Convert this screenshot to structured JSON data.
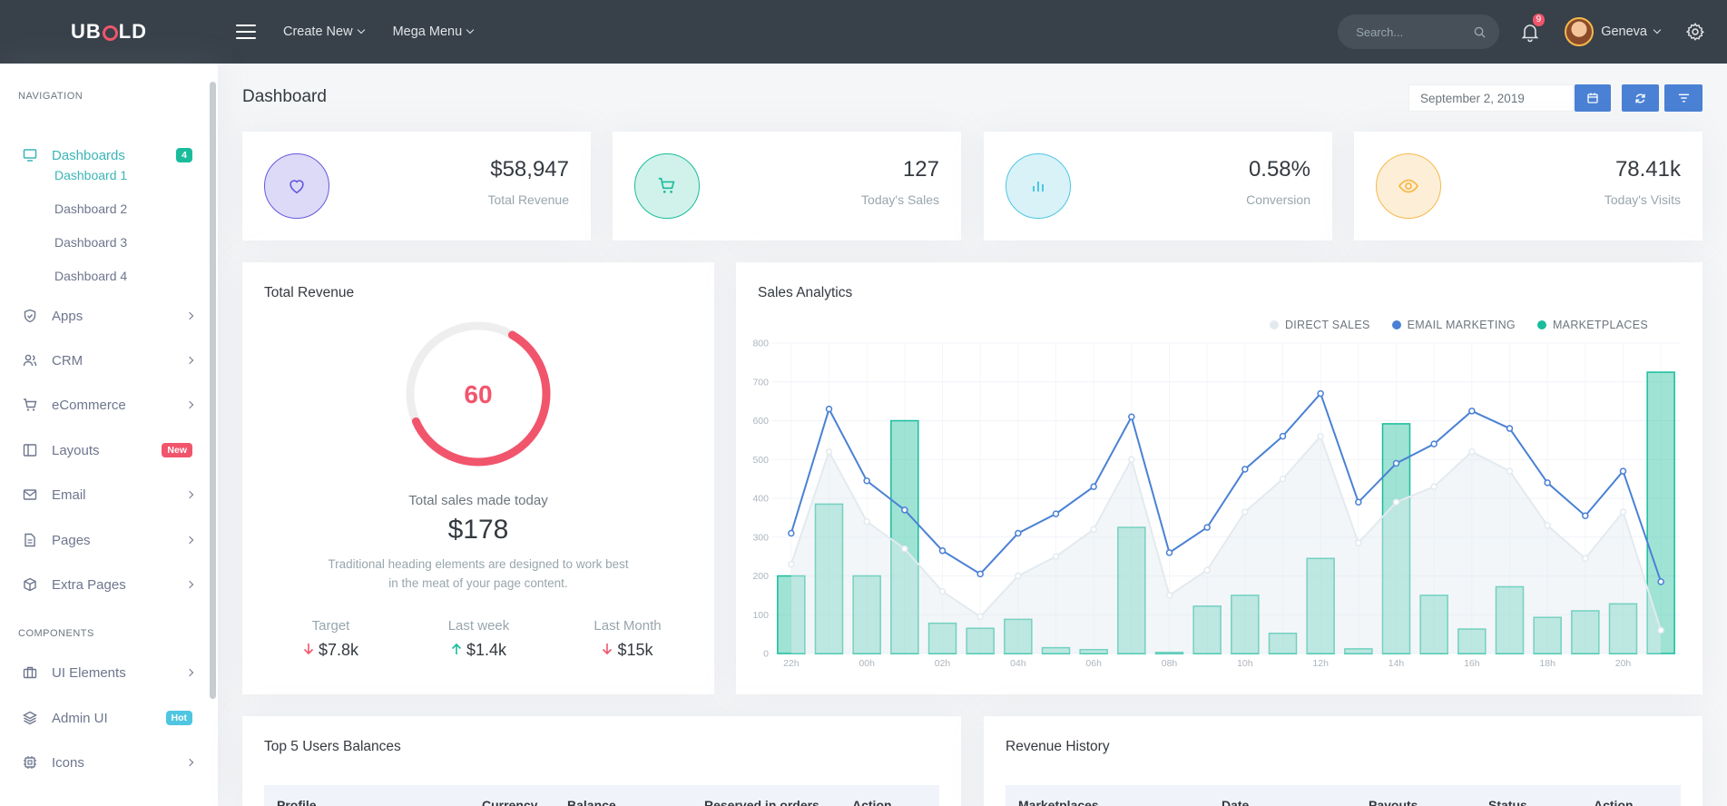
{
  "topbar": {
    "logo_pre": "UB",
    "logo_post": "LD",
    "nav": [
      {
        "label": "Create New"
      },
      {
        "label": "Mega Menu"
      }
    ],
    "search_placeholder": "Search...",
    "notifications": "9",
    "user_name": "Geneva"
  },
  "sidebar": {
    "section_navigation": "Navigation",
    "section_components": "Components",
    "dashboards_label": "Dashboards",
    "dashboards_badge": "4",
    "subitems": [
      "Dashboard 1",
      "Dashboard 2",
      "Dashboard 3",
      "Dashboard 4"
    ],
    "items": [
      {
        "label": "Apps"
      },
      {
        "label": "CRM"
      },
      {
        "label": "eCommerce"
      },
      {
        "label": "Layouts",
        "badge": "New"
      },
      {
        "label": "Email"
      },
      {
        "label": "Pages"
      },
      {
        "label": "Extra Pages"
      }
    ],
    "components": [
      {
        "label": "UI Elements"
      },
      {
        "label": "Admin UI",
        "badge": "Hot"
      },
      {
        "label": "Icons"
      }
    ]
  },
  "page": {
    "title": "Dashboard",
    "date": "September 2, 2019"
  },
  "stats": [
    {
      "value": "$58,947",
      "label": "Total Revenue",
      "icon": "heart-icon"
    },
    {
      "value": "127",
      "label": "Today's Sales",
      "icon": "cart-icon"
    },
    {
      "value": "0.58%",
      "label": "Conversion",
      "icon": "bar-chart-icon"
    },
    {
      "value": "78.41k",
      "label": "Today's Visits",
      "icon": "eye-icon"
    }
  ],
  "total_revenue": {
    "title": "Total Revenue",
    "gauge_value": "60",
    "gauge_fraction": 0.6,
    "caption": "Total sales made today",
    "amount": "$178",
    "desc_line1": "Traditional heading elements are designed to work best",
    "desc_line2": "in the meat of your page content.",
    "metrics": [
      {
        "label": "Target",
        "value": "$7.8k",
        "trend": "down"
      },
      {
        "label": "Last week",
        "value": "$1.4k",
        "trend": "up"
      },
      {
        "label": "Last Month",
        "value": "$15k",
        "trend": "down"
      }
    ]
  },
  "chart_data": {
    "type": "bar",
    "title": "Sales Analytics",
    "legend_position": "top-right",
    "ylim": [
      0,
      800
    ],
    "yticks": [
      0,
      100,
      200,
      300,
      400,
      500,
      600,
      700,
      800
    ],
    "xtick_labels": [
      "22h",
      "00h",
      "02h",
      "04h",
      "06h",
      "08h",
      "10h",
      "12h",
      "14h",
      "16h",
      "18h",
      "20h"
    ],
    "grid": true,
    "series": [
      {
        "name": "DIRECT SALES",
        "type": "area",
        "color": "#e3eaef",
        "values": [
          230,
          520,
          340,
          270,
          160,
          95,
          200,
          250,
          320,
          500,
          150,
          215,
          365,
          450,
          560,
          285,
          390,
          430,
          520,
          470,
          330,
          245,
          365,
          60
        ]
      },
      {
        "name": "EMAIL MARKETING",
        "type": "line",
        "color": "#4a81d4",
        "values": [
          310,
          630,
          445,
          370,
          265,
          205,
          310,
          360,
          430,
          610,
          260,
          325,
          475,
          560,
          670,
          390,
          490,
          540,
          625,
          580,
          440,
          355,
          470,
          185
        ]
      },
      {
        "name": "MARKETPLACES",
        "type": "bar",
        "color": "#1abc9c",
        "values": [
          200,
          385,
          200,
          600,
          78,
          65,
          88,
          15,
          10,
          325,
          3,
          122,
          150,
          52,
          245,
          12,
          592,
          150,
          63,
          172,
          93,
          110,
          128,
          725
        ]
      }
    ]
  },
  "balances": {
    "title": "Top 5 Users Balances",
    "columns": [
      "Profile",
      "Currency",
      "Balance",
      "Reserved in orders",
      "Action"
    ]
  },
  "revenue_history": {
    "title": "Revenue History",
    "columns": [
      "Marketplaces",
      "Date",
      "Payouts",
      "Status",
      "Action"
    ]
  },
  "colors": {
    "topbar": "#38414a",
    "accent": "#3cb5b7",
    "primary": "#4a81d4",
    "danger": "#f1556c",
    "success": "#1abc9c",
    "info": "#4fc6e1",
    "warning": "#f7b84b",
    "purple": "#6658dd"
  }
}
